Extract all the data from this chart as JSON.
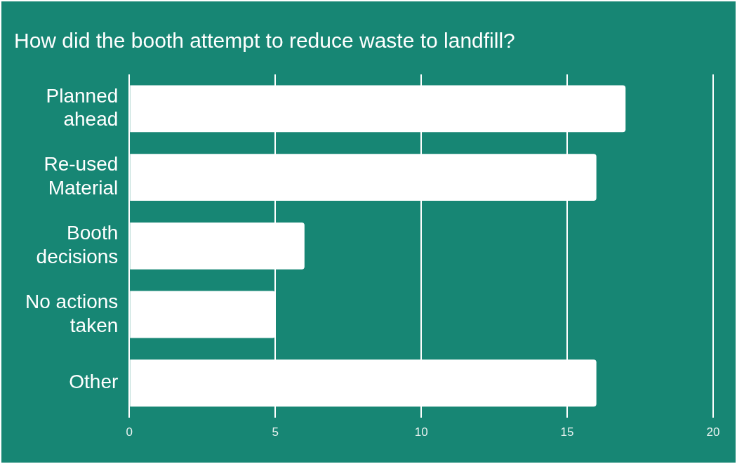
{
  "chart_data": {
    "type": "bar",
    "orientation": "horizontal",
    "title": "How did the booth attempt to reduce waste to landfill?",
    "categories": [
      "Planned ahead",
      "Re-used Material",
      "Booth decisions",
      "No actions taken",
      "Other"
    ],
    "values": [
      17,
      16,
      6,
      5,
      16
    ],
    "color": "#ffffff",
    "xlim": [
      0,
      20
    ],
    "xticks": [
      0,
      5,
      10,
      15,
      20
    ],
    "grid": "x"
  }
}
